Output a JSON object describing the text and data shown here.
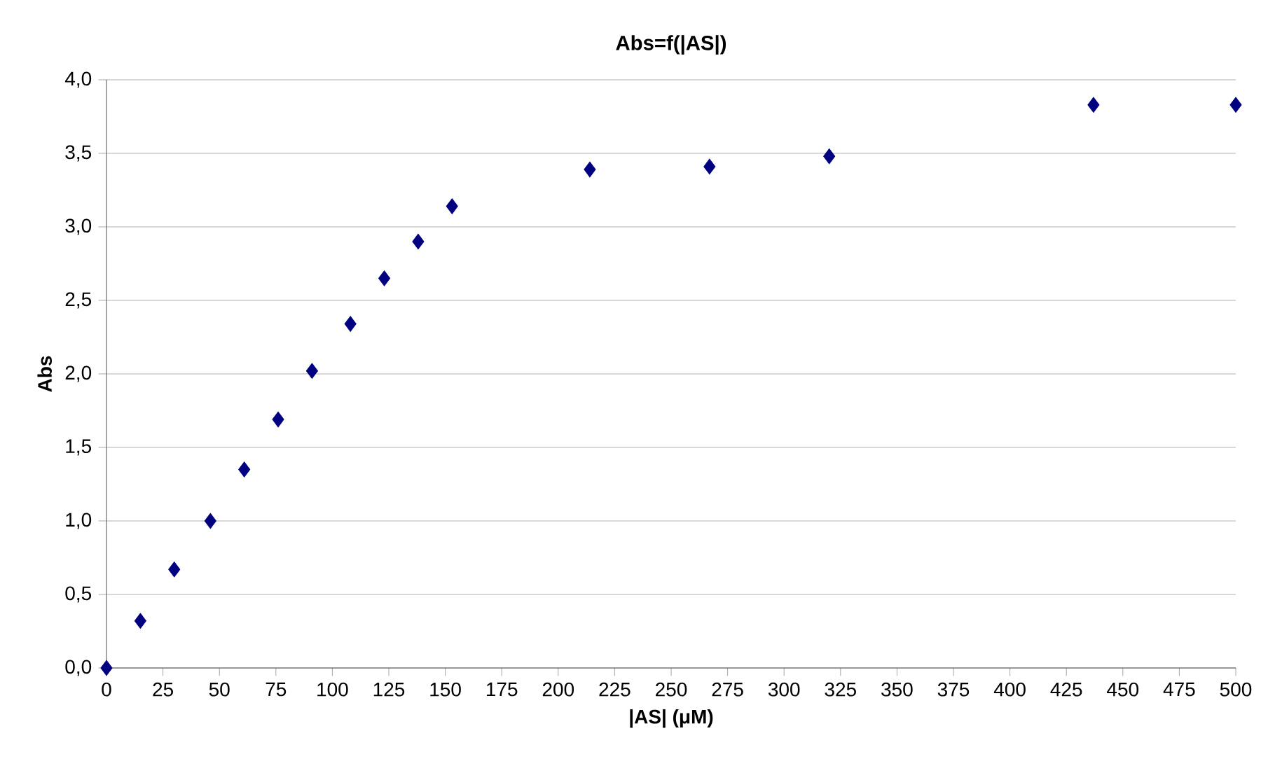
{
  "chart_data": {
    "type": "scatter",
    "title": "Abs=f(|AS|)",
    "xlabel": "|AS| (μM)",
    "ylabel": "Abs",
    "x": [
      0,
      15,
      30,
      46,
      61,
      76,
      91,
      108,
      123,
      138,
      153,
      214,
      267,
      320,
      437,
      500
    ],
    "values": [
      0,
      0.32,
      0.67,
      1.0,
      1.35,
      1.69,
      2.02,
      2.34,
      2.65,
      2.9,
      3.14,
      3.39,
      3.41,
      3.48,
      3.83,
      3.83
    ],
    "color": "#000080",
    "marker": "diamond",
    "grid": "y",
    "xlim": [
      0,
      500
    ],
    "xticks": [
      0,
      25,
      50,
      75,
      100,
      125,
      150,
      175,
      200,
      225,
      250,
      275,
      300,
      325,
      350,
      375,
      400,
      425,
      450,
      475,
      500
    ],
    "ylim": [
      0,
      4
    ],
    "yticks": [
      {
        "value": 0,
        "label": "0,0"
      },
      {
        "value": 0.5,
        "label": "0,5"
      },
      {
        "value": 1,
        "label": "1,0"
      },
      {
        "value": 1.5,
        "label": "1,5"
      },
      {
        "value": 2,
        "label": "2,0"
      },
      {
        "value": 2.5,
        "label": "2,5"
      },
      {
        "value": 3,
        "label": "3,0"
      },
      {
        "value": 3.5,
        "label": "3,5"
      },
      {
        "value": 4,
        "label": "4,0"
      }
    ]
  }
}
